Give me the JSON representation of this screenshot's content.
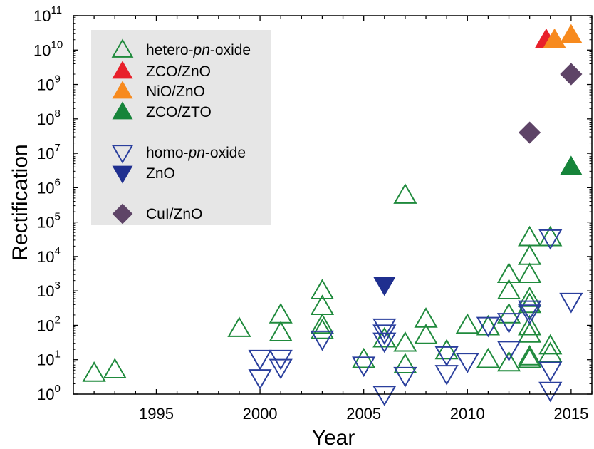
{
  "chart_data": {
    "type": "scatter",
    "title": "",
    "xlabel": "Year",
    "ylabel": "Rectification",
    "xlim": [
      1991,
      2016
    ],
    "ylim": [
      0,
      11
    ],
    "yscale": "log10",
    "x_ticks": [
      1995,
      2000,
      2005,
      2010,
      2015
    ],
    "y_ticks": [
      {
        "base": "10",
        "exp": "0"
      },
      {
        "base": "10",
        "exp": "1"
      },
      {
        "base": "10",
        "exp": "2"
      },
      {
        "base": "10",
        "exp": "3"
      },
      {
        "base": "10",
        "exp": "4"
      },
      {
        "base": "10",
        "exp": "5"
      },
      {
        "base": "10",
        "exp": "6"
      },
      {
        "base": "10",
        "exp": "7"
      },
      {
        "base": "10",
        "exp": "8"
      },
      {
        "base": "10",
        "exp": "9"
      },
      {
        "base": "10",
        "exp": "10"
      },
      {
        "base": "10",
        "exp": "11"
      }
    ],
    "grid": false,
    "legend_position": "top-left",
    "legend_background": "#e6e6e6",
    "series": [
      {
        "legend_parts": [
          {
            "t": "hetero-",
            "i": false
          },
          {
            "t": "pn",
            "i": true
          },
          {
            "t": "-oxide",
            "i": false
          }
        ],
        "marker": "triangle-up",
        "filled": false,
        "color": "#1f8a3c",
        "points": [
          [
            1992,
            4
          ],
          [
            1993,
            5
          ],
          [
            1999,
            80
          ],
          [
            2001,
            200
          ],
          [
            2001,
            60
          ],
          [
            2003,
            1000
          ],
          [
            2003,
            350
          ],
          [
            2003,
            100
          ],
          [
            2003,
            70
          ],
          [
            2005,
            10
          ],
          [
            2006,
            40
          ],
          [
            2007,
            600000
          ],
          [
            2007,
            30
          ],
          [
            2007,
            7
          ],
          [
            2008,
            150
          ],
          [
            2008,
            50
          ],
          [
            2009,
            18
          ],
          [
            2010,
            100
          ],
          [
            2011,
            90
          ],
          [
            2011,
            10
          ],
          [
            2012,
            3000
          ],
          [
            2012,
            1000
          ],
          [
            2012,
            200
          ],
          [
            2012,
            8
          ],
          [
            2013,
            35000
          ],
          [
            2013,
            10000
          ],
          [
            2013,
            3000
          ],
          [
            2013,
            600
          ],
          [
            2013,
            400
          ],
          [
            2013,
            90
          ],
          [
            2013,
            55
          ],
          [
            2013,
            12
          ],
          [
            2013,
            10
          ],
          [
            2014,
            35000
          ],
          [
            2014,
            25
          ],
          [
            2014,
            15
          ]
        ]
      },
      {
        "legend_parts": [
          {
            "t": "ZCO/ZnO",
            "i": false
          }
        ],
        "marker": "triangle-up",
        "filled": true,
        "color": "#e8202a",
        "points": [
          [
            2013.8,
            20000000000
          ]
        ]
      },
      {
        "legend_parts": [
          {
            "t": "NiO/ZnO",
            "i": false
          }
        ],
        "marker": "triangle-up",
        "filled": true,
        "color": "#f78a1e",
        "points": [
          [
            2014.2,
            20000000000
          ],
          [
            2015,
            27000000000
          ]
        ]
      },
      {
        "legend_parts": [
          {
            "t": "ZCO/ZTO",
            "i": false
          }
        ],
        "marker": "triangle-up",
        "filled": true,
        "color": "#16843a",
        "points": [
          [
            2015,
            4000000
          ]
        ]
      },
      {
        "legend_parts": [
          {
            "t": "homo-",
            "i": false
          },
          {
            "t": "pn",
            "i": true
          },
          {
            "t": "-oxide",
            "i": false
          }
        ],
        "marker": "triangle-down",
        "filled": false,
        "color": "#2a3f9d",
        "points": [
          [
            2000,
            11
          ],
          [
            2000,
            3
          ],
          [
            2001,
            11
          ],
          [
            2001,
            6
          ],
          [
            2003,
            40
          ],
          [
            2005,
            7
          ],
          [
            2006,
            90
          ],
          [
            2006,
            60
          ],
          [
            2006,
            35
          ],
          [
            2006,
            1
          ],
          [
            2007,
            3.5
          ],
          [
            2009,
            14
          ],
          [
            2009,
            4
          ],
          [
            2010,
            9
          ],
          [
            2011,
            100
          ],
          [
            2012,
            130
          ],
          [
            2012,
            20
          ],
          [
            2013,
            300
          ],
          [
            2013,
            230
          ],
          [
            2014,
            35000
          ],
          [
            2014,
            5
          ],
          [
            2014,
            1.3
          ],
          [
            2015,
            500
          ]
        ]
      },
      {
        "legend_parts": [
          {
            "t": "ZnO",
            "i": false
          }
        ],
        "marker": "triangle-down",
        "filled": true,
        "color": "#1f2f8f",
        "points": [
          [
            2006,
            1500
          ]
        ]
      },
      {
        "legend_parts": [
          {
            "t": "CuI/ZnO",
            "i": false
          }
        ],
        "marker": "diamond",
        "filled": true,
        "color": "#5e4467",
        "points": [
          [
            2013,
            40000000
          ],
          [
            2015,
            2000000000
          ]
        ]
      }
    ]
  }
}
